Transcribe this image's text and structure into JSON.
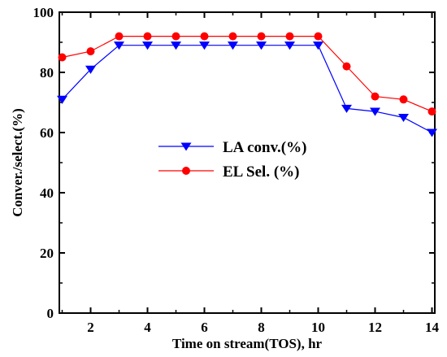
{
  "chart_data": {
    "type": "line",
    "title": "",
    "xlabel": "Time on stream(TOS), hr",
    "ylabel": "Conver./select.(%)",
    "xlim": [
      0.9,
      14.1
    ],
    "ylim": [
      0,
      100
    ],
    "x_ticks": [
      "2",
      "4",
      "6",
      "8",
      "10",
      "12",
      "14"
    ],
    "y_ticks": [
      "0",
      "20",
      "40",
      "60",
      "80",
      "100"
    ],
    "grid": false,
    "legend_position": "center",
    "series": [
      {
        "name": "LA conv.(%)",
        "color": "#0000ff",
        "marker": "triangle-down",
        "x": [
          1,
          2,
          3,
          4,
          5,
          6,
          7,
          8,
          9,
          10,
          11,
          12,
          13,
          14
        ],
        "y": [
          71,
          81,
          89,
          89,
          89,
          89,
          89,
          89,
          89,
          89,
          68,
          67,
          65,
          60
        ]
      },
      {
        "name": "EL Sel. (%)",
        "color": "#ff0000",
        "marker": "circle",
        "x": [
          1,
          2,
          3,
          4,
          5,
          6,
          7,
          8,
          9,
          10,
          11,
          12,
          13,
          14
        ],
        "y": [
          85,
          87,
          92,
          92,
          92,
          92,
          92,
          92,
          92,
          92,
          82,
          72,
          71,
          67
        ]
      }
    ]
  }
}
